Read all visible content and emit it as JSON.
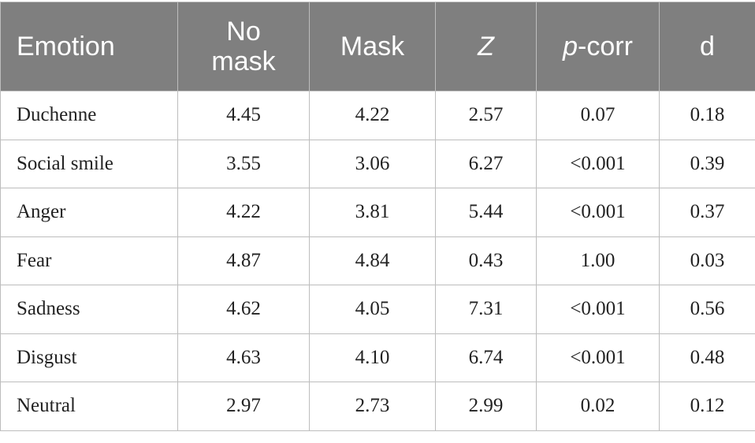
{
  "table": {
    "header": [
      {
        "text": "Emotion"
      },
      {
        "text": "No mask"
      },
      {
        "text": "Mask"
      },
      {
        "italic": "Z"
      },
      {
        "italic": "p",
        "text": "-corr"
      },
      {
        "text": "d"
      }
    ],
    "rows": [
      [
        "Duchenne",
        "4.45",
        "4.22",
        "2.57",
        "0.07",
        "0.18"
      ],
      [
        "Social smile",
        "3.55",
        "3.06",
        "6.27",
        "<0.001",
        "0.39"
      ],
      [
        "Anger",
        "4.22",
        "3.81",
        "5.44",
        "<0.001",
        "0.37"
      ],
      [
        "Fear",
        "4.87",
        "4.84",
        "0.43",
        "1.00",
        "0.03"
      ],
      [
        "Sadness",
        "4.62",
        "4.05",
        "7.31",
        "<0.001",
        "0.56"
      ],
      [
        "Disgust",
        "4.63",
        "4.10",
        "6.74",
        "<0.001",
        "0.48"
      ],
      [
        "Neutral",
        "2.97",
        "2.73",
        "2.99",
        "0.02",
        "0.12"
      ]
    ]
  }
}
